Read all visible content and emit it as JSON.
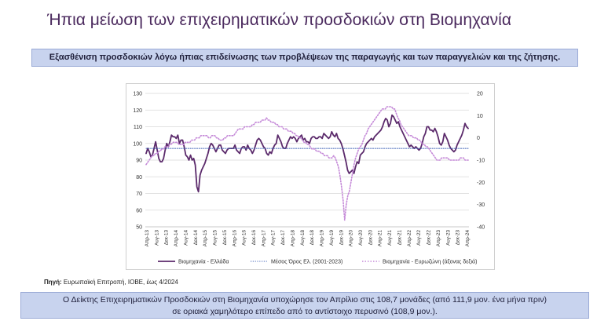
{
  "title": "Ήπια μείωση των επιχειρηματικών προσδοκιών στη Βιομηχανία",
  "subtitle": "Εξασθένιση προσδοκιών λόγω ήπιας επιδείνωσης των προβλέψεων της παραγωγής και των παραγγελιών και της ζήτησης.",
  "source": {
    "label": "Πηγή:",
    "text": "Ευρωπαϊκή Επιτροπή, ΙΟΒΕ, έως 4/2024"
  },
  "summary": {
    "line1": "Ο Δείκτης Επιχειρηματικών Προσδοκιών στη Βιομηχανία υποχώρησε τον Απρίλιο στις 108,7 μονάδες (από 111,9  μον. ένα μήνα πριν)",
    "line2": "σε οριακά χαμηλότερο επίπεδο από το αντίστοιχο περυσινό (108,9 μον.)."
  },
  "colors": {
    "greece": "#5b2a6b",
    "average": "#3c5fb5",
    "eurozone": "#c58ad8",
    "title": "#4b2a5e",
    "bar_bg": "#c8d3ee"
  },
  "chart_data": {
    "type": "line",
    "ylim_left": [
      50,
      130
    ],
    "yticks_left": [
      "50",
      "60",
      "70",
      "80",
      "90",
      "100",
      "110",
      "120",
      "130"
    ],
    "ylim_right": [
      -40,
      20
    ],
    "yticks_right": [
      "-40",
      "-30",
      "-20",
      "-10",
      "0",
      "10",
      "20"
    ],
    "x_tick_labels": [
      "Απρ-13",
      "Αυγ-13",
      "Δεκ-13",
      "Απρ-14",
      "Αυγ-14",
      "Δεκ-14",
      "Απρ-15",
      "Αυγ-15",
      "Δεκ-15",
      "Απρ-16",
      "Αυγ-16",
      "Δεκ-16",
      "Απρ-17",
      "Αυγ-17",
      "Δεκ-17",
      "Απρ-18",
      "Αυγ-18",
      "Δεκ-18",
      "Απρ-19",
      "Αυγ-19",
      "Δεκ-19",
      "Απρ-20",
      "Αυγ-20",
      "Δεκ-20",
      "Απρ-21",
      "Αυγ-21",
      "Δεκ-21",
      "Απρ-22",
      "Αυγ-22",
      "Δεκ-22",
      "Απρ-23",
      "Αυγ-23",
      "Δεκ-23",
      "Απρ-24"
    ],
    "grid": true,
    "legend_placement": "bottom",
    "series": [
      {
        "name": "Βιομηχανία - Ελλάδα",
        "axis": "left",
        "style": "solid",
        "values": [
          94,
          97,
          95,
          92,
          93,
          97,
          101,
          96,
          91,
          89,
          89,
          91,
          96,
          100,
          98,
          101,
          105,
          104,
          104,
          103,
          105,
          100,
          102,
          102,
          98,
          93,
          92,
          90,
          93,
          90,
          91,
          87,
          74,
          71,
          81,
          84,
          86,
          88,
          91,
          94,
          98,
          100,
          99,
          97,
          95,
          97,
          99,
          99,
          96,
          95,
          94,
          96,
          97,
          97,
          97,
          97,
          99,
          96,
          95,
          94,
          97,
          98,
          98,
          96,
          99,
          97,
          96,
          94,
          96,
          99,
          102,
          103,
          102,
          100,
          98,
          97,
          94,
          93,
          95,
          94,
          97,
          99,
          100,
          105,
          103,
          101,
          98,
          97,
          97,
          100,
          102,
          104,
          103,
          104,
          103,
          101,
          103,
          104,
          105,
          102,
          103,
          101,
          101,
          100,
          103,
          104,
          104,
          103,
          103,
          104,
          104,
          103,
          106,
          105,
          104,
          103,
          104,
          107,
          105,
          104,
          106,
          103,
          102,
          100,
          97,
          93,
          89,
          84,
          82,
          83,
          84,
          82,
          86,
          89,
          88,
          93,
          94,
          95,
          98,
          100,
          101,
          102,
          103,
          102,
          104,
          105,
          106,
          107,
          108,
          110,
          113,
          115,
          114,
          110,
          112,
          117,
          116,
          114,
          112,
          113,
          110,
          108,
          106,
          104,
          102,
          100,
          98,
          99,
          98,
          97,
          98,
          97,
          96,
          97,
          100,
          104,
          106,
          110,
          110,
          108,
          108,
          107,
          109,
          107,
          104,
          100,
          99,
          101,
          106,
          104,
          102,
          99,
          97,
          96,
          95,
          96,
          99,
          101,
          103,
          105,
          108,
          112,
          110,
          109
        ]
      },
      {
        "name": "Μέσος Όρος Ελ. (2001-2023)",
        "axis": "left",
        "style": "dotted",
        "values": [
          97,
          97
        ]
      },
      {
        "name": "Βιομηχανία - Ευρωζώνη (άξονας δεξιά)",
        "axis": "right",
        "style": "dotted",
        "values": [
          -12,
          -11,
          -10,
          -9,
          -8,
          -8,
          -7,
          -7,
          -6,
          -6,
          -5,
          -5,
          -4,
          -4,
          -4,
          -3,
          -3,
          -2,
          -2,
          -2,
          -2,
          -3,
          -3,
          -3,
          -3,
          -2,
          -2,
          -2,
          -2,
          -1,
          -1,
          -1,
          0,
          0,
          0,
          1,
          1,
          1,
          1,
          1,
          0,
          0,
          1,
          1,
          1,
          0,
          0,
          -1,
          -1,
          -1,
          0,
          0,
          1,
          1,
          1,
          1,
          1,
          2,
          3,
          4,
          4,
          4,
          4,
          5,
          5,
          5,
          5,
          5,
          6,
          6,
          7,
          7,
          7,
          7,
          8,
          8,
          8,
          9,
          8,
          8,
          7,
          7,
          7,
          6,
          6,
          5,
          5,
          5,
          4,
          4,
          4,
          3,
          3,
          3,
          2,
          2,
          1,
          1,
          0,
          0,
          -1,
          -2,
          -2,
          -3,
          -3,
          -4,
          -5,
          -5,
          -5,
          -6,
          -6,
          -6,
          -7,
          -7,
          -8,
          -8,
          -8,
          -9,
          -9,
          -9,
          -8,
          -9,
          -11,
          -13,
          -17,
          -22,
          -28,
          -37,
          -30,
          -26,
          -24,
          -20,
          -16,
          -12,
          -9,
          -7,
          -5,
          -4,
          -3,
          -1,
          1,
          2,
          4,
          5,
          6,
          7,
          8,
          9,
          10,
          11,
          12,
          13,
          13,
          13,
          14,
          14,
          14,
          14,
          13,
          13,
          11,
          9,
          8,
          6,
          5,
          4,
          3,
          2,
          1,
          1,
          1,
          0,
          0,
          0,
          -1,
          -1,
          -2,
          -3,
          -3,
          -4,
          -4,
          -5,
          -6,
          -7,
          -8,
          -9,
          -10,
          -10,
          -10,
          -9,
          -9,
          -9,
          -9,
          -9,
          -10,
          -10,
          -10,
          -10,
          -10,
          -10,
          -10,
          -9,
          -9,
          -9,
          -10,
          -10,
          -10
        ]
      }
    ]
  }
}
